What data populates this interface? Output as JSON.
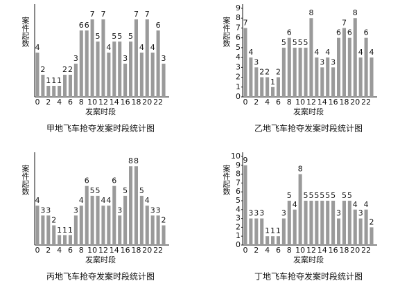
{
  "chart_data": [
    {
      "type": "bar",
      "title": "甲地飞车抢夺发案时段统计图",
      "xlabel": "发案时段",
      "ylabel": "案件起数",
      "color": "#9a9a9a",
      "categories": [
        0,
        null,
        2,
        null,
        4,
        null,
        6,
        null,
        8,
        null,
        10,
        null,
        12,
        null,
        14,
        null,
        16,
        null,
        18,
        null,
        20,
        null,
        22,
        null
      ],
      "values": [
        4,
        2,
        1,
        1,
        1,
        2,
        2,
        3,
        6,
        6,
        7,
        5,
        7,
        4,
        5,
        5,
        3,
        5,
        7,
        4,
        7,
        4,
        6,
        3
      ],
      "ylim": [
        0,
        8
      ]
    },
    {
      "type": "bar",
      "title": "乙地飞车抢夺发案时段统计图",
      "xlabel": "发案时段",
      "ylabel": "案件起数",
      "color": "#9a9a9a",
      "categories": [
        0,
        null,
        2,
        null,
        4,
        null,
        6,
        null,
        8,
        null,
        10,
        null,
        12,
        null,
        14,
        null,
        16,
        null,
        18,
        null,
        20,
        null,
        22,
        null
      ],
      "values": [
        7,
        4,
        3,
        2,
        2,
        1,
        2,
        5,
        6,
        5,
        5,
        5,
        8,
        4,
        3,
        4,
        3,
        6,
        7,
        6,
        8,
        4,
        6,
        4
      ],
      "ylim": [
        0,
        9
      ],
      "yticks": [
        0,
        1,
        2,
        3,
        4,
        5,
        6,
        7,
        8,
        9
      ]
    },
    {
      "type": "bar",
      "title": "丙地飞车抢夺发案时段统计图",
      "xlabel": "发案时段",
      "ylabel": "案件起数",
      "color": "#9a9a9a",
      "categories": [
        0,
        null,
        2,
        null,
        4,
        null,
        6,
        null,
        8,
        null,
        10,
        null,
        12,
        null,
        14,
        null,
        16,
        null,
        18,
        null,
        20,
        null,
        22,
        null
      ],
      "values": [
        4,
        3,
        3,
        2,
        1,
        1,
        1,
        3,
        4,
        6,
        5,
        5,
        4,
        4,
        6,
        3,
        5,
        8,
        8,
        5,
        4,
        3,
        3,
        2
      ],
      "ylim": [
        0,
        9
      ]
    },
    {
      "type": "bar",
      "title": "丁地飞车抢夺发案时段统计图",
      "xlabel": "发案时段",
      "ylabel": "案件起数",
      "color": "#9a9a9a",
      "categories": [
        0,
        null,
        2,
        null,
        4,
        null,
        6,
        null,
        8,
        null,
        10,
        null,
        12,
        null,
        14,
        null,
        16,
        null,
        18,
        null,
        20,
        null,
        22,
        null
      ],
      "values": [
        9,
        3,
        3,
        3,
        1,
        1,
        1,
        3,
        5,
        4,
        8,
        5,
        5,
        5,
        5,
        5,
        5,
        3,
        5,
        5,
        4,
        3,
        4,
        2
      ],
      "ylim": [
        0,
        10
      ],
      "yticks": [
        0,
        1,
        2,
        3,
        4,
        5,
        6,
        7,
        8,
        9,
        10
      ]
    }
  ]
}
